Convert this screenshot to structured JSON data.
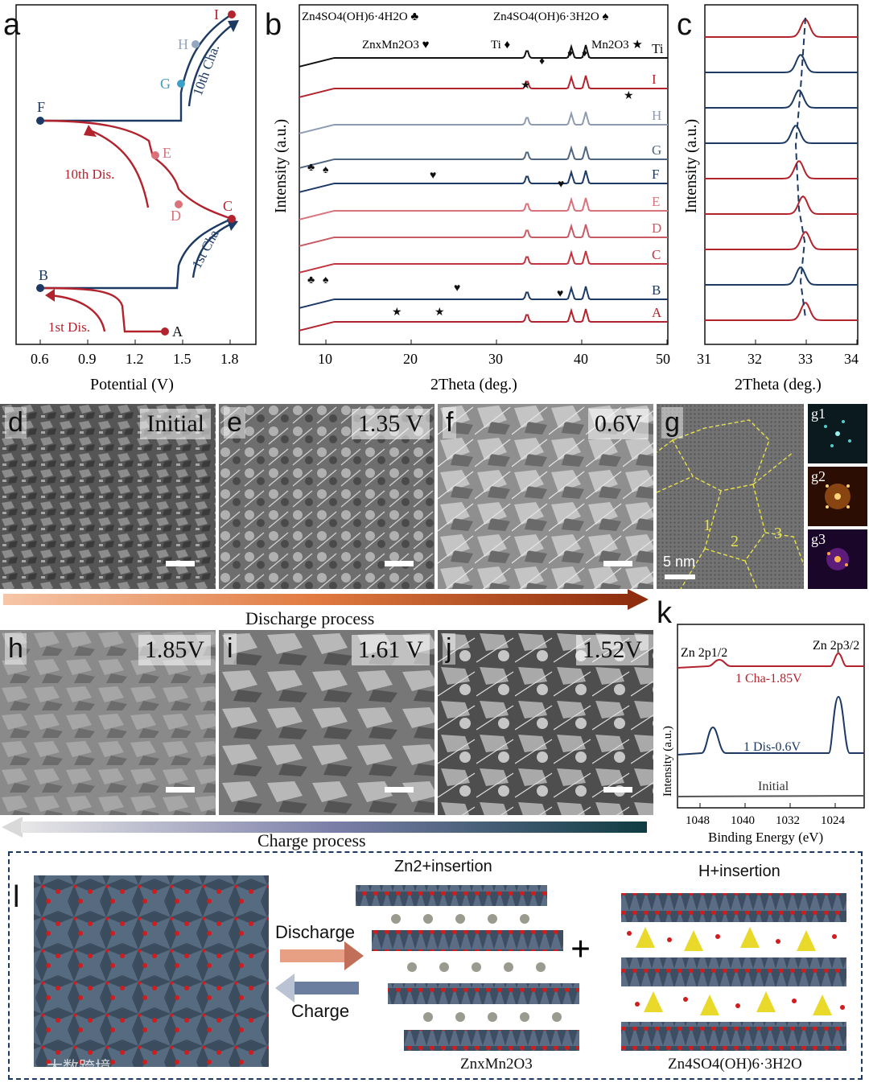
{
  "panels": {
    "a": {
      "letter": "a",
      "xlabel": "Potential (V)",
      "ticks": [
        "0.6",
        "0.9",
        "1.2",
        "1.5",
        "1.8"
      ],
      "points": [
        "A",
        "B",
        "C",
        "D",
        "E",
        "F",
        "G",
        "H",
        "I"
      ],
      "dis1": "1st Dis.",
      "cha1": "1st Cha.",
      "dis10": "10th Dis.",
      "cha10": "10th Cha."
    },
    "b": {
      "letter": "b",
      "xlabel": "2Theta (deg.)",
      "ylabel": "Intensity (a.u.)",
      "ticks": [
        "10",
        "20",
        "30",
        "40",
        "50"
      ],
      "legend1": "Zn4SO4(OH)6·4H2O ♣",
      "legend2": "Zn4SO4(OH)6·3H2O ♠",
      "legend3": "ZnxMn2O3 ♥",
      "legend4": "Ti ♦",
      "legend5": "Mn2O3 ★",
      "curves": [
        "Ti",
        "I",
        "H",
        "G",
        "F",
        "E",
        "D",
        "C",
        "B",
        "A"
      ]
    },
    "c": {
      "letter": "c",
      "xlabel": "2Theta (deg.)",
      "ylabel": "Intensity (a.u.)",
      "ticks": [
        "31",
        "32",
        "33",
        "34"
      ]
    },
    "d": {
      "letter": "d",
      "label": "Initial"
    },
    "e": {
      "letter": "e",
      "label": "1.35 V"
    },
    "f": {
      "letter": "f",
      "label": "0.6V"
    },
    "g": {
      "letter": "g",
      "scale": "5 nm",
      "regions": [
        "1",
        "2",
        "3"
      ],
      "fft": [
        "g1",
        "g2",
        "g3"
      ]
    },
    "h": {
      "letter": "h",
      "label": "1.85V"
    },
    "i": {
      "letter": "i",
      "label": "1.61 V"
    },
    "j": {
      "letter": "j",
      "label": "1.52V"
    },
    "k": {
      "letter": "k",
      "xlabel": "Binding Energy (eV)",
      "ylabel": "Intensity (a.u.)",
      "ticks": [
        "1048",
        "1040",
        "1032",
        "1024"
      ],
      "peak1": "Zn 2p1/2",
      "peak2": "Zn 2p3/2",
      "curve1": "1 Cha-1.85V",
      "curve2": "1 Dis-0.6V",
      "curve3": "Initial"
    },
    "l": {
      "letter": "l",
      "discharge": "Discharge",
      "charge": "Charge",
      "zn_title": "Zn2+insertion",
      "h_title": "H+insertion",
      "zn_product": "ZnxMn2O3",
      "h_product": "Zn4SO4(OH)6·3H2O",
      "plus": "+"
    }
  },
  "captions": {
    "discharge_process": "Discharge process",
    "charge_process": "Charge process"
  },
  "watermark": "大数跨境",
  "colors": {
    "red": "#b3232e",
    "navy": "#1c3a63",
    "lightred": "#d9727a",
    "steel": "#7f93ad"
  }
}
